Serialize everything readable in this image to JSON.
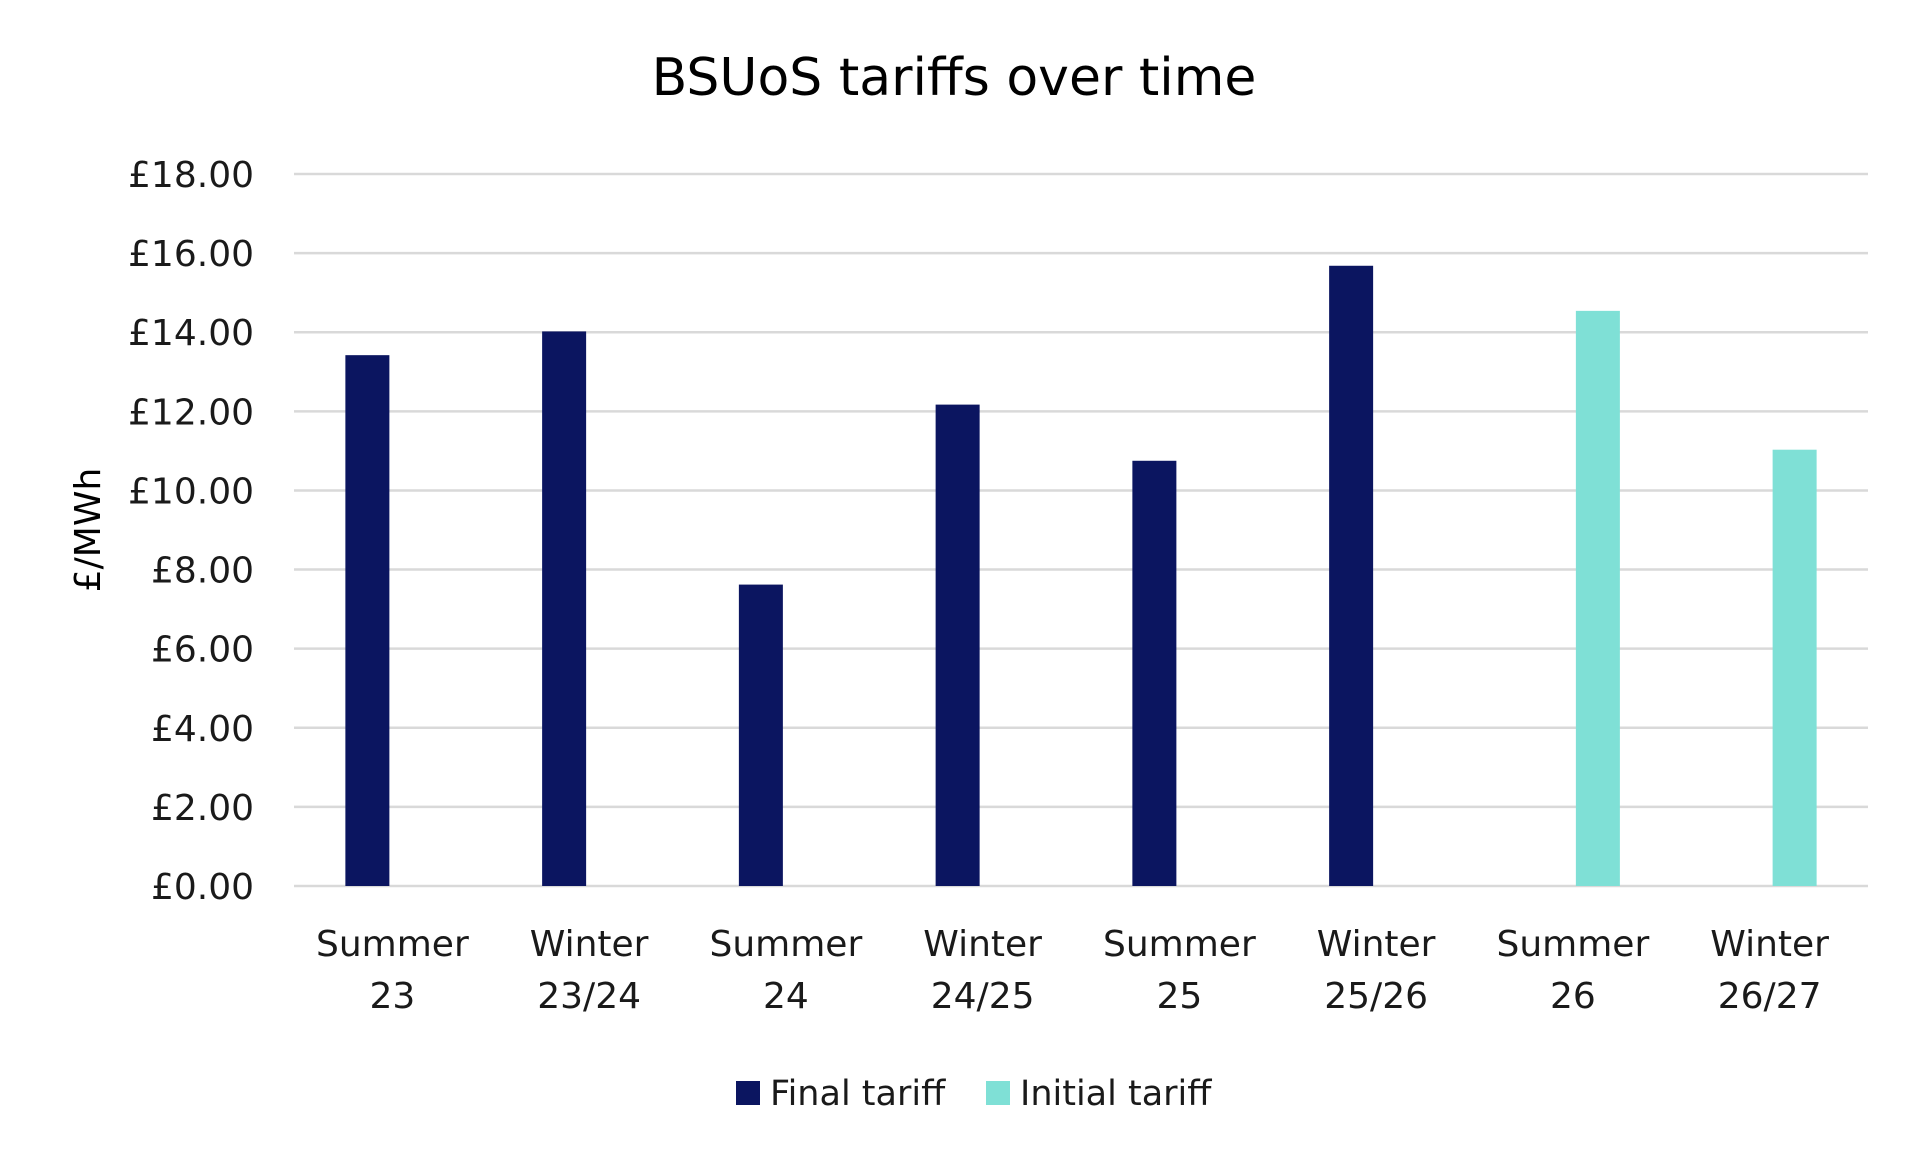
{
  "chart_data": {
    "type": "bar",
    "title": "BSUoS tariffs over time",
    "ylabel": "£/MWh",
    "xlabel": "",
    "ylim": [
      0,
      18
    ],
    "yticks": [
      0,
      2,
      4,
      6,
      8,
      10,
      12,
      14,
      16,
      18
    ],
    "ytick_labels": [
      "£0.00",
      "£2.00",
      "£4.00",
      "£6.00",
      "£8.00",
      "£10.00",
      "£12.00",
      "£14.00",
      "£16.00",
      "£18.00"
    ],
    "grid": true,
    "legend_position": "bottom",
    "categories": [
      [
        "Summer",
        "23"
      ],
      [
        "Winter",
        "23/24"
      ],
      [
        "Summer",
        "24"
      ],
      [
        "Winter",
        "24/25"
      ],
      [
        "Summer",
        "25"
      ],
      [
        "Winter",
        "25/26"
      ],
      [
        "Summer",
        "26"
      ],
      [
        "Winter",
        "26/27"
      ]
    ],
    "series": [
      {
        "name": "Final tariff",
        "color": "#0b1560",
        "values": [
          13.42,
          14.02,
          7.62,
          12.17,
          10.75,
          15.68,
          null,
          null
        ]
      },
      {
        "name": "Initial tariff",
        "color": "#7fe0d6",
        "values": [
          null,
          null,
          null,
          null,
          null,
          null,
          14.54,
          11.03
        ]
      }
    ]
  }
}
